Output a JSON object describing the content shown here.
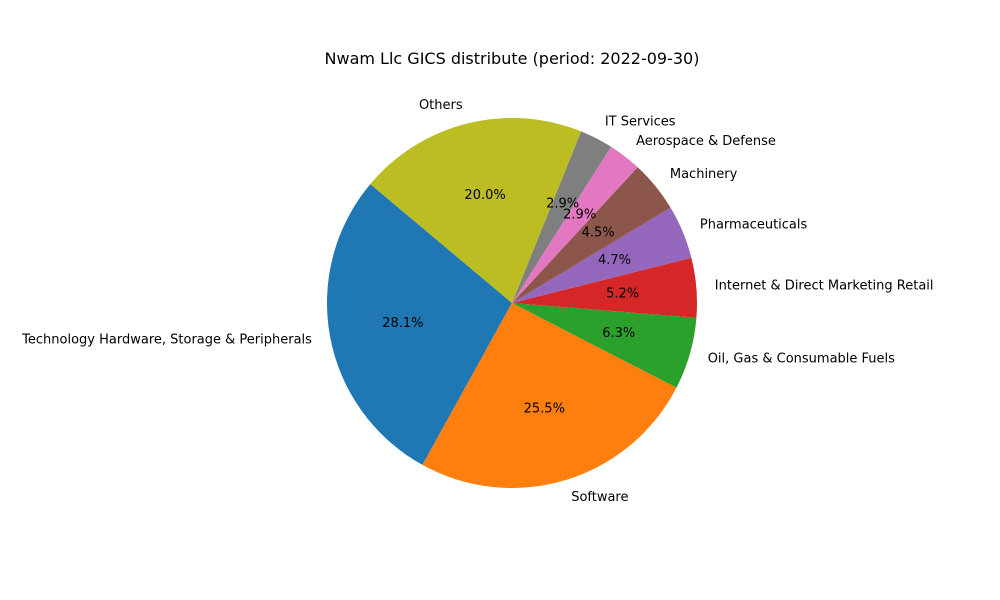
{
  "chart_data": {
    "type": "pie",
    "title": "Nwam Llc GICS distribute (period: 2022-09-30)",
    "start_angle_deg": 140,
    "direction": "counterclockwise",
    "slices": [
      {
        "label": "Technology Hardware, Storage & Peripherals",
        "value": 28.1,
        "pct_label": "28.1%",
        "color": "#1f77b4"
      },
      {
        "label": "Software",
        "value": 25.5,
        "pct_label": "25.5%",
        "color": "#ff7f0e"
      },
      {
        "label": "Oil, Gas & Consumable Fuels",
        "value": 6.3,
        "pct_label": "6.3%",
        "color": "#2ca02c"
      },
      {
        "label": "Internet & Direct Marketing Retail",
        "value": 5.2,
        "pct_label": "5.2%",
        "color": "#d62728"
      },
      {
        "label": "Pharmaceuticals",
        "value": 4.7,
        "pct_label": "4.7%",
        "color": "#9467bd"
      },
      {
        "label": "Machinery",
        "value": 4.5,
        "pct_label": "4.5%",
        "color": "#8c564b"
      },
      {
        "label": "Aerospace & Defense",
        "value": 2.9,
        "pct_label": "2.9%",
        "color": "#e377c2"
      },
      {
        "label": "IT Services",
        "value": 2.9,
        "pct_label": "2.9%",
        "color": "#7f7f7f"
      },
      {
        "label": "Others",
        "value": 20.0,
        "pct_label": "20.0%",
        "color": "#bcbd22"
      }
    ]
  }
}
